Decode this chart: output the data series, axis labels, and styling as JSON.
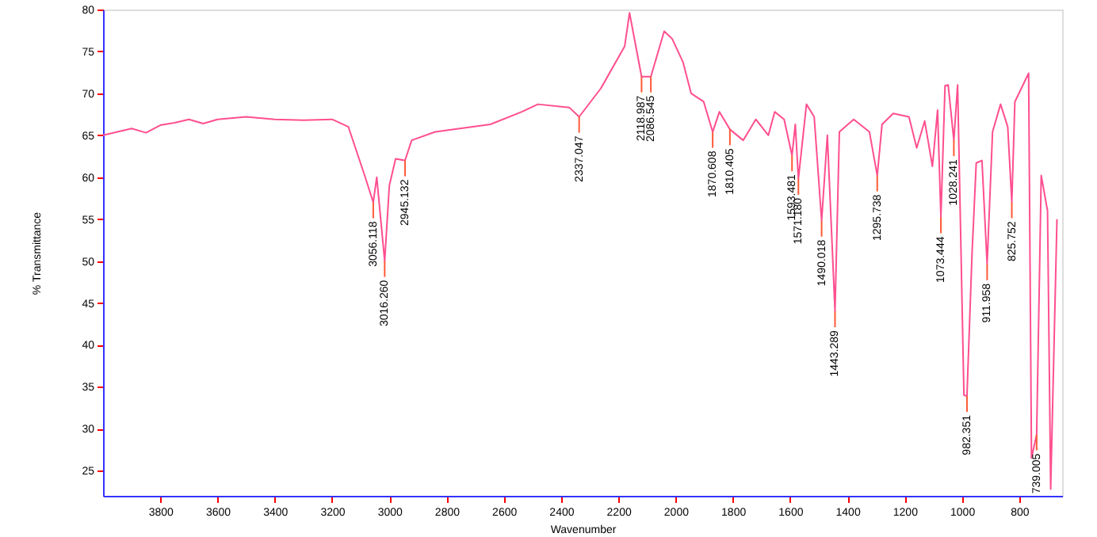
{
  "chart_data": {
    "type": "line",
    "xlabel": "Wavenumber",
    "ylabel": "% Transmittance",
    "xlim": [
      4000,
      650
    ],
    "ylim": [
      22,
      80
    ],
    "xticks": [
      3800,
      3600,
      3400,
      3200,
      3000,
      2800,
      2600,
      2400,
      2200,
      2000,
      1800,
      1600,
      1400,
      1200,
      1000,
      800
    ],
    "yticks": [
      25,
      30,
      35,
      40,
      45,
      50,
      55,
      60,
      65,
      70,
      75,
      80
    ],
    "grid": false,
    "marker": "none",
    "line_style": "solid",
    "series": [
      {
        "color": "#ff4f8f",
        "x": [
          4000,
          3950,
          3900,
          3850,
          3800,
          3750,
          3700,
          3650,
          3600,
          3500,
          3400,
          3300,
          3200,
          3143,
          3088,
          3056.118,
          3044,
          3016.26,
          3000,
          2978,
          2945.132,
          2922,
          2840,
          2647,
          2537,
          2481,
          2371,
          2337.047,
          2261,
          2178,
          2161,
          2118.987,
          2086.545,
          2040,
          2012,
          1974,
          1946,
          1902,
          1870.608,
          1847,
          1810.405,
          1764,
          1720,
          1676,
          1654,
          1621,
          1593.481,
          1582,
          1571.18,
          1543,
          1516,
          1490.018,
          1470,
          1443.289,
          1428,
          1378,
          1323,
          1295.738,
          1279,
          1240,
          1185,
          1158,
          1130,
          1103,
          1085,
          1073.444,
          1059,
          1048,
          1028.241,
          1015,
          993,
          982.351,
          965,
          950,
          930,
          911.958,
          893,
          865,
          840,
          825.752,
          815,
          767,
          757,
          739.005,
          723,
          701,
          690,
          668
        ],
        "values": [
          65,
          65.4,
          65.8,
          65.3,
          66.2,
          66.5,
          66.9,
          66.4,
          66.9,
          67.2,
          66.9,
          66.8,
          66.9,
          66,
          60.4,
          57,
          60,
          50,
          59,
          62.2,
          62,
          64.4,
          65.4,
          66.3,
          67.8,
          68.7,
          68.3,
          67.2,
          70.6,
          75.6,
          79.6,
          72,
          72,
          77.4,
          76.5,
          73.7,
          70,
          69,
          65.4,
          67.8,
          65.7,
          64.4,
          66.9,
          65,
          67.8,
          66.9,
          62.6,
          66.3,
          59.8,
          68.7,
          67.2,
          54.8,
          65,
          44,
          65.4,
          66.9,
          65.4,
          60.2,
          66.3,
          67.6,
          67.2,
          63.5,
          66.7,
          61.3,
          68,
          55.2,
          70.9,
          71,
          64.4,
          71,
          34,
          33.9,
          50.6,
          61.7,
          62,
          49.6,
          65.4,
          68.7,
          66,
          57,
          69,
          72.4,
          26.5,
          29.3,
          60.2,
          56,
          22.8,
          55
        ]
      }
    ],
    "annotations": [
      {
        "text": "3056.118",
        "x": 3056.118,
        "y": 57
      },
      {
        "text": "3016.260",
        "x": 3016.26,
        "y": 50
      },
      {
        "text": "2945.132",
        "x": 2945.132,
        "y": 62
      },
      {
        "text": "2337.047",
        "x": 2337.047,
        "y": 67.2
      },
      {
        "text": "2118.987",
        "x": 2118.987,
        "y": 72
      },
      {
        "text": "2086.545",
        "x": 2086.545,
        "y": 72
      },
      {
        "text": "1870.608",
        "x": 1870.608,
        "y": 65.4
      },
      {
        "text": "1810.405",
        "x": 1810.405,
        "y": 65.7
      },
      {
        "text": "1593.481",
        "x": 1593.481,
        "y": 62.6
      },
      {
        "text": "1571.180",
        "x": 1571.18,
        "y": 59.8
      },
      {
        "text": "1490.018",
        "x": 1490.018,
        "y": 54.8
      },
      {
        "text": "1443.289",
        "x": 1443.289,
        "y": 44
      },
      {
        "text": "1295.738",
        "x": 1295.738,
        "y": 60.2
      },
      {
        "text": "1073.444",
        "x": 1073.444,
        "y": 55.2
      },
      {
        "text": "1028.241",
        "x": 1028.241,
        "y": 64.4
      },
      {
        "text": "982.351",
        "x": 982.351,
        "y": 33.9
      },
      {
        "text": "911.958",
        "x": 911.958,
        "y": 49.6
      },
      {
        "text": "825.752",
        "x": 825.752,
        "y": 57
      },
      {
        "text": "739.005",
        "x": 739.005,
        "y": 29.3
      }
    ]
  }
}
